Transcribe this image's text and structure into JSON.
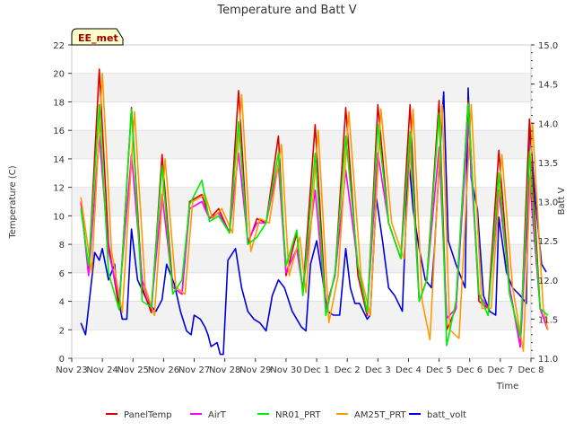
{
  "chart_data": {
    "type": "line",
    "title": "Temperature and Batt V",
    "xlabel": "Time",
    "ylabel": "Temperature (C)",
    "y2label": "Batt V",
    "annotation": "EE_met",
    "xlim": [
      "Nov 23",
      "Dec 8"
    ],
    "ylim": [
      0,
      22
    ],
    "y2lim": [
      11.0,
      15.0
    ],
    "x_ticks": [
      "Nov 23",
      "Nov 24",
      "Nov 25",
      "Nov 26",
      "Nov 27",
      "Nov 28",
      "Nov 29",
      "Nov 30",
      "Dec 1",
      "Dec 2",
      "Dec 3",
      "Dec 4",
      "Dec 5",
      "Dec 6",
      "Dec 7",
      "Dec 8"
    ],
    "y_ticks": [
      "0",
      "2",
      "4",
      "6",
      "8",
      "10",
      "12",
      "14",
      "16",
      "18",
      "20",
      "22"
    ],
    "y2_ticks": [
      "11.0",
      "11.5",
      "12.0",
      "12.5",
      "13.0",
      "13.5",
      "14.0",
      "14.5",
      "15.0"
    ],
    "grid": "horizontal bands",
    "legend_position": "bottom",
    "series": [
      {
        "name": "PanelTemp",
        "color": "#dd0000",
        "axis": "left",
        "points": [
          [
            0.3,
            11
          ],
          [
            0.55,
            6
          ],
          [
            0.9,
            20.3
          ],
          [
            1.2,
            8
          ],
          [
            1.55,
            3.5
          ],
          [
            1.95,
            17.6
          ],
          [
            2.3,
            5
          ],
          [
            2.6,
            3.2
          ],
          [
            2.95,
            14.3
          ],
          [
            3.3,
            5
          ],
          [
            3.6,
            4.5
          ],
          [
            3.85,
            11
          ],
          [
            4.25,
            11.5
          ],
          [
            4.5,
            9.8
          ],
          [
            4.8,
            10.5
          ],
          [
            5.15,
            8.8
          ],
          [
            5.45,
            18.8
          ],
          [
            5.75,
            8
          ],
          [
            6.05,
            9.8
          ],
          [
            6.35,
            9.5
          ],
          [
            6.75,
            15.6
          ],
          [
            7.0,
            5.8
          ],
          [
            7.35,
            8.8
          ],
          [
            7.55,
            4.6
          ],
          [
            7.95,
            16.4
          ],
          [
            8.3,
            3.5
          ],
          [
            8.6,
            5.8
          ],
          [
            8.95,
            17.6
          ],
          [
            9.35,
            5.8
          ],
          [
            9.65,
            3.0
          ],
          [
            10.0,
            17.8
          ],
          [
            10.35,
            9.5
          ],
          [
            10.75,
            7
          ],
          [
            11.05,
            17.8
          ],
          [
            11.35,
            4
          ],
          [
            11.6,
            5.5
          ],
          [
            12.0,
            18.1
          ],
          [
            12.25,
            2
          ],
          [
            12.55,
            3.5
          ],
          [
            12.95,
            18.1
          ],
          [
            13.3,
            4
          ],
          [
            13.6,
            3.5
          ],
          [
            13.95,
            14.6
          ],
          [
            14.3,
            5
          ],
          [
            14.65,
            0.8
          ],
          [
            14.95,
            16.8
          ],
          [
            15.3,
            3.5
          ],
          [
            15.55,
            2
          ]
        ]
      },
      {
        "name": "AirT",
        "color": "#ff00ff",
        "axis": "left",
        "points": [
          [
            0.3,
            11
          ],
          [
            0.55,
            5.8
          ],
          [
            0.9,
            15.6
          ],
          [
            1.2,
            7.5
          ],
          [
            1.55,
            4.2
          ],
          [
            1.95,
            14.3
          ],
          [
            2.3,
            5.5
          ],
          [
            2.6,
            3.5
          ],
          [
            2.95,
            11.5
          ],
          [
            3.3,
            5
          ],
          [
            3.6,
            4.5
          ],
          [
            3.85,
            10.5
          ],
          [
            4.25,
            11
          ],
          [
            4.5,
            9.8
          ],
          [
            4.8,
            10.2
          ],
          [
            5.15,
            8.8
          ],
          [
            5.45,
            14.4
          ],
          [
            5.75,
            8.2
          ],
          [
            6.05,
            9.5
          ],
          [
            6.35,
            9.5
          ],
          [
            6.75,
            13.6
          ],
          [
            7.0,
            6
          ],
          [
            7.35,
            7.7
          ],
          [
            7.55,
            4.8
          ],
          [
            7.95,
            11.8
          ],
          [
            8.3,
            3.5
          ],
          [
            8.6,
            5.8
          ],
          [
            8.95,
            13.2
          ],
          [
            9.35,
            6.5
          ],
          [
            9.65,
            3.2
          ],
          [
            10.0,
            14.4
          ],
          [
            10.35,
            9.5
          ],
          [
            10.75,
            7
          ],
          [
            11.05,
            15.3
          ],
          [
            11.35,
            4
          ],
          [
            11.6,
            5.5
          ],
          [
            12.0,
            14.8
          ],
          [
            12.25,
            2.8
          ],
          [
            12.55,
            3.5
          ],
          [
            12.95,
            16.6
          ],
          [
            13.3,
            4.5
          ],
          [
            13.6,
            3.5
          ],
          [
            13.95,
            11.8
          ],
          [
            14.3,
            5
          ],
          [
            14.65,
            0.8
          ],
          [
            14.95,
            12.7
          ],
          [
            15.3,
            3.5
          ],
          [
            15.55,
            2
          ]
        ]
      },
      {
        "name": "NR01_PRT",
        "color": "#00ee00",
        "axis": "left",
        "points": [
          [
            0.3,
            10.5
          ],
          [
            0.55,
            6.5
          ],
          [
            0.9,
            17.8
          ],
          [
            1.2,
            6
          ],
          [
            1.55,
            3.4
          ],
          [
            1.95,
            17.5
          ],
          [
            2.3,
            4
          ],
          [
            2.6,
            3.6
          ],
          [
            2.95,
            13.5
          ],
          [
            3.3,
            4.5
          ],
          [
            3.6,
            5.5
          ],
          [
            3.85,
            10.8
          ],
          [
            4.25,
            12.5
          ],
          [
            4.5,
            9.6
          ],
          [
            4.8,
            10
          ],
          [
            5.15,
            8.8
          ],
          [
            5.45,
            16.6
          ],
          [
            5.75,
            8
          ],
          [
            6.05,
            8.5
          ],
          [
            6.35,
            9.5
          ],
          [
            6.75,
            14.4
          ],
          [
            7.0,
            6.5
          ],
          [
            7.35,
            9
          ],
          [
            7.55,
            4.4
          ],
          [
            7.95,
            14.4
          ],
          [
            8.3,
            3
          ],
          [
            8.6,
            6
          ],
          [
            8.95,
            15.6
          ],
          [
            9.35,
            6.5
          ],
          [
            9.65,
            3.2
          ],
          [
            10.0,
            16.4
          ],
          [
            10.35,
            9.5
          ],
          [
            10.75,
            7
          ],
          [
            11.05,
            15.9
          ],
          [
            11.35,
            4
          ],
          [
            11.6,
            5.5
          ],
          [
            12.0,
            17.2
          ],
          [
            12.25,
            0.9
          ],
          [
            12.55,
            4
          ],
          [
            12.95,
            17.9
          ],
          [
            13.3,
            4.5
          ],
          [
            13.6,
            3
          ],
          [
            13.95,
            13
          ],
          [
            14.3,
            4.5
          ],
          [
            14.65,
            1.5
          ],
          [
            14.95,
            14.5
          ],
          [
            15.3,
            3.5
          ],
          [
            15.55,
            3
          ]
        ]
      },
      {
        "name": "AM25T_PRT",
        "color": "#ff9900",
        "axis": "left",
        "points": [
          [
            0.3,
            11.3
          ],
          [
            0.65,
            6
          ],
          [
            1.0,
            20
          ],
          [
            1.3,
            7.5
          ],
          [
            1.65,
            3.2
          ],
          [
            2.05,
            17.3
          ],
          [
            2.4,
            5
          ],
          [
            2.7,
            3
          ],
          [
            3.05,
            14
          ],
          [
            3.4,
            5
          ],
          [
            3.7,
            4.5
          ],
          [
            3.95,
            11
          ],
          [
            4.35,
            11.5
          ],
          [
            4.6,
            9.8
          ],
          [
            4.9,
            10.5
          ],
          [
            5.25,
            8.8
          ],
          [
            5.55,
            18.5
          ],
          [
            5.85,
            7.5
          ],
          [
            6.15,
            9.8
          ],
          [
            6.45,
            9.5
          ],
          [
            6.85,
            15
          ],
          [
            7.1,
            5.8
          ],
          [
            7.45,
            8.5
          ],
          [
            7.65,
            4.6
          ],
          [
            8.05,
            16
          ],
          [
            8.4,
            2.5
          ],
          [
            8.7,
            5.8
          ],
          [
            9.05,
            17.3
          ],
          [
            9.45,
            5.8
          ],
          [
            9.75,
            3.0
          ],
          [
            10.1,
            17.5
          ],
          [
            10.45,
            9.5
          ],
          [
            10.85,
            7
          ],
          [
            11.15,
            17.5
          ],
          [
            11.45,
            4
          ],
          [
            11.7,
            1.3
          ],
          [
            12.1,
            17.8
          ],
          [
            12.35,
            2
          ],
          [
            12.65,
            1.4
          ],
          [
            13.05,
            17.8
          ],
          [
            13.4,
            3.5
          ],
          [
            13.7,
            3.5
          ],
          [
            14.05,
            14.3
          ],
          [
            14.4,
            5
          ],
          [
            14.75,
            0.5
          ],
          [
            15.05,
            16.5
          ],
          [
            15.4,
            3.5
          ],
          [
            15.55,
            2
          ]
        ]
      },
      {
        "name": "batt_volt",
        "color": "#0000dd",
        "axis": "right",
        "points": [
          [
            0.3,
            11.45
          ],
          [
            0.45,
            11.3
          ],
          [
            0.75,
            12.35
          ],
          [
            0.9,
            12.25
          ],
          [
            1.0,
            12.4
          ],
          [
            1.2,
            12.0
          ],
          [
            1.4,
            12.2
          ],
          [
            1.5,
            11.8
          ],
          [
            1.65,
            11.5
          ],
          [
            1.8,
            11.5
          ],
          [
            1.95,
            12.65
          ],
          [
            2.15,
            12.0
          ],
          [
            2.5,
            11.7
          ],
          [
            2.75,
            11.6
          ],
          [
            2.95,
            11.75
          ],
          [
            3.1,
            12.2
          ],
          [
            3.35,
            11.95
          ],
          [
            3.55,
            11.6
          ],
          [
            3.75,
            11.35
          ],
          [
            3.9,
            11.3
          ],
          [
            4.0,
            11.55
          ],
          [
            4.2,
            11.5
          ],
          [
            4.35,
            11.4
          ],
          [
            4.45,
            11.3
          ],
          [
            4.55,
            11.15
          ],
          [
            4.75,
            11.2
          ],
          [
            4.85,
            11.05
          ],
          [
            4.95,
            11.05
          ],
          [
            5.1,
            12.25
          ],
          [
            5.35,
            12.4
          ],
          [
            5.55,
            11.9
          ],
          [
            5.75,
            11.6
          ],
          [
            5.95,
            11.5
          ],
          [
            6.15,
            11.45
          ],
          [
            6.35,
            11.35
          ],
          [
            6.55,
            11.8
          ],
          [
            6.75,
            12.0
          ],
          [
            6.95,
            11.9
          ],
          [
            7.2,
            11.6
          ],
          [
            7.5,
            11.4
          ],
          [
            7.65,
            11.35
          ],
          [
            7.8,
            12.2
          ],
          [
            8.0,
            12.5
          ],
          [
            8.2,
            12.0
          ],
          [
            8.35,
            11.6
          ],
          [
            8.55,
            11.55
          ],
          [
            8.75,
            11.55
          ],
          [
            8.95,
            12.4
          ],
          [
            9.1,
            11.9
          ],
          [
            9.25,
            11.7
          ],
          [
            9.4,
            11.7
          ],
          [
            9.65,
            11.5
          ],
          [
            9.75,
            11.55
          ],
          [
            9.95,
            13.05
          ],
          [
            10.15,
            12.5
          ],
          [
            10.35,
            11.9
          ],
          [
            10.55,
            11.8
          ],
          [
            10.8,
            11.6
          ],
          [
            11.0,
            13.6
          ],
          [
            11.15,
            12.9
          ],
          [
            11.35,
            12.4
          ],
          [
            11.55,
            12.0
          ],
          [
            11.75,
            11.9
          ],
          [
            11.85,
            12.4
          ],
          [
            12.0,
            13.45
          ],
          [
            12.15,
            14.4
          ],
          [
            12.3,
            12.5
          ],
          [
            12.55,
            12.2
          ],
          [
            12.85,
            11.9
          ],
          [
            12.95,
            14.45
          ],
          [
            13.05,
            13.3
          ],
          [
            13.25,
            12.9
          ],
          [
            13.45,
            11.8
          ],
          [
            13.65,
            11.6
          ],
          [
            13.85,
            11.55
          ],
          [
            13.95,
            12.8
          ],
          [
            14.2,
            12.1
          ],
          [
            14.4,
            11.9
          ],
          [
            14.65,
            11.8
          ],
          [
            14.85,
            11.7
          ],
          [
            14.95,
            14.0
          ],
          [
            15.15,
            13.0
          ],
          [
            15.35,
            12.2
          ],
          [
            15.5,
            12.1
          ]
        ]
      }
    ]
  }
}
